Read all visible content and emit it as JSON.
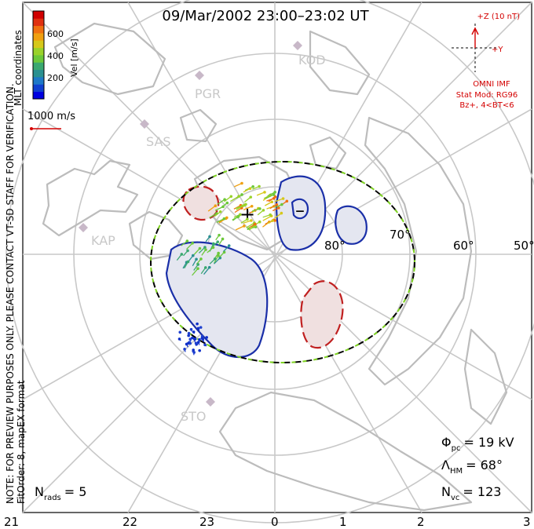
{
  "title": "09/Mar/2002 23:00–23:02 UT",
  "left_notes": {
    "line1": "NOTE: FOR PREVIEW PURPOSES ONLY. PLEASE CONTACT VT-SD STAFF FOR VERIFICATION.",
    "line2": "FitOrder: 8, mapEX format",
    "coords": "MLT coordinates"
  },
  "colorbar": {
    "label": "Vel [m/s]",
    "ticks": [
      "600",
      "400",
      "200"
    ],
    "colors": [
      "#0000e0",
      "#1040d0",
      "#1e78c8",
      "#2a9090",
      "#3aa870",
      "#6cc83a",
      "#9ad22a",
      "#d6c81a",
      "#f0a010",
      "#f07010",
      "#e03010",
      "#d00000"
    ]
  },
  "scale_vector": {
    "label": "1000 m/s",
    "color": "#d40000"
  },
  "imf": {
    "z_label": "+Z (10 nT)",
    "y_label": "+Y",
    "source": "OMNI IMF",
    "model": "Stat Mod: RG96",
    "condition": "Bz+, 4<BT<6"
  },
  "stations": [
    "PGR",
    "KOD",
    "SAS",
    "KAP",
    "STO"
  ],
  "latitude_labels": [
    "80°",
    "70°",
    "60°",
    "50°"
  ],
  "mlt_labels": [
    "21",
    "22",
    "23",
    "0",
    "1",
    "2",
    "3"
  ],
  "stats": {
    "phi_pc": "Φ",
    "phi_pc_sub": "pc",
    "phi_pc_value": "= 19 kV",
    "lambda_hm": "Λ",
    "lambda_hm_sub": "HM",
    "lambda_hm_value": "= 68°",
    "n_vc": "N",
    "n_vc_sub": "vc",
    "n_vc_value": "= 123",
    "n_rads": "N",
    "n_rads_sub": "rads",
    "n_rads_value": "= 5"
  },
  "potential_markers": {
    "max": "+",
    "min": "–"
  },
  "colors": {
    "negative_contour": "#1a2fa8",
    "positive_contour": "#c02020",
    "grid": "#c8c8c8",
    "boundary_green": "#7ed321"
  }
}
